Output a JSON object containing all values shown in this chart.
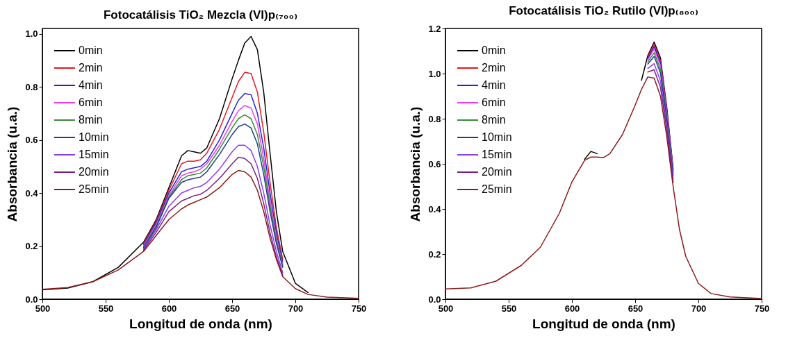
{
  "chart_data": [
    {
      "type": "line",
      "title": "Fotocatálisis TiO₂ Mezcla (VI)p₍₇₀₀₎",
      "xlabel": "Longitud de onda (nm)",
      "ylabel": "Absorbancia (u.a.)",
      "xlim": [
        500,
        750
      ],
      "xticks": [
        500,
        550,
        600,
        650,
        700,
        750
      ],
      "ylim": [
        0,
        1.02
      ],
      "yticks": [
        {
          "value": 0,
          "label": "0.0"
        },
        {
          "value": 0.2,
          "label": "0.2"
        },
        {
          "value": 0.4,
          "label": "0.4"
        },
        {
          "value": 0.6,
          "label": "0.6"
        },
        {
          "value": 0.8,
          "label": "0.8"
        },
        {
          "value": 1,
          "label": "1.0"
        }
      ],
      "grid": false,
      "legend": "top left",
      "x": [
        500,
        520,
        540,
        560,
        580,
        590,
        600,
        610,
        615,
        620,
        625,
        630,
        640,
        650,
        655,
        660,
        665,
        670,
        675,
        680,
        685,
        690,
        700,
        710,
        725,
        750
      ],
      "series": [
        {
          "name": "0min",
          "color": "#000000",
          "values": [
            0.035,
            0.042,
            0.066,
            0.12,
            0.215,
            0.3,
            0.42,
            0.54,
            0.56,
            0.555,
            0.55,
            0.57,
            0.68,
            0.83,
            0.9,
            0.965,
            0.99,
            0.94,
            0.78,
            0.55,
            0.33,
            0.18,
            0.06,
            0.025,
            null,
            null
          ]
        },
        {
          "name": "2min",
          "color": "#e8191e",
          "values": [
            null,
            null,
            null,
            null,
            0.21,
            0.294,
            0.41,
            0.51,
            0.52,
            0.52,
            0.525,
            0.55,
            0.64,
            0.76,
            0.82,
            0.855,
            0.85,
            0.78,
            0.63,
            0.44,
            0.27,
            0.15,
            null,
            null,
            null,
            null
          ]
        },
        {
          "name": "4min",
          "color": "#2424d6",
          "values": [
            null,
            null,
            null,
            null,
            0.206,
            0.288,
            0.4,
            0.48,
            0.49,
            0.495,
            0.5,
            0.52,
            0.6,
            0.7,
            0.75,
            0.775,
            0.77,
            0.7,
            0.57,
            0.4,
            0.25,
            0.14,
            null,
            null,
            null,
            null
          ]
        },
        {
          "name": "6min",
          "color": "#ee3cee",
          "values": [
            null,
            null,
            null,
            null,
            0.202,
            0.282,
            0.39,
            0.465,
            0.475,
            0.48,
            0.49,
            0.51,
            0.58,
            0.67,
            0.71,
            0.73,
            0.72,
            0.66,
            0.53,
            0.37,
            0.23,
            0.13,
            null,
            null,
            null,
            null
          ]
        },
        {
          "name": "8min",
          "color": "#3a8a3a",
          "values": [
            null,
            null,
            null,
            null,
            0.198,
            0.276,
            0.385,
            0.45,
            0.465,
            0.47,
            0.475,
            0.495,
            0.565,
            0.645,
            0.68,
            0.695,
            0.68,
            0.62,
            0.5,
            0.35,
            0.22,
            0.125,
            null,
            null,
            null,
            null
          ]
        },
        {
          "name": "10min",
          "color": "#1e3c8c",
          "values": [
            null,
            null,
            null,
            null,
            0.194,
            0.27,
            0.38,
            0.44,
            0.45,
            0.455,
            0.46,
            0.48,
            0.545,
            0.62,
            0.65,
            0.66,
            0.645,
            0.585,
            0.47,
            0.33,
            0.21,
            0.12,
            null,
            null,
            null,
            null
          ]
        },
        {
          "name": "15min",
          "color": "#8a3cf0",
          "values": [
            null,
            null,
            null,
            null,
            0.19,
            0.262,
            0.35,
            0.4,
            0.41,
            0.42,
            0.425,
            0.44,
            0.49,
            0.555,
            0.58,
            0.58,
            0.56,
            0.5,
            0.4,
            0.28,
            0.18,
            0.1,
            null,
            null,
            null,
            null
          ]
        },
        {
          "name": "20min",
          "color": "#7a1e8a",
          "values": [
            null,
            null,
            null,
            null,
            0.185,
            0.252,
            0.33,
            0.37,
            0.38,
            0.39,
            0.395,
            0.41,
            0.455,
            0.51,
            0.535,
            0.53,
            0.51,
            0.455,
            0.36,
            0.25,
            0.16,
            0.09,
            null,
            null,
            null,
            null
          ]
        },
        {
          "name": "25min",
          "color": "#8b1a1a",
          "values": [
            0.037,
            0.044,
            0.066,
            0.11,
            0.18,
            0.24,
            0.3,
            0.34,
            0.355,
            0.365,
            0.375,
            0.385,
            0.42,
            0.47,
            0.485,
            0.48,
            0.46,
            0.41,
            0.33,
            0.23,
            0.15,
            0.085,
            0.04,
            0.018,
            0.008,
            0.003
          ]
        }
      ]
    },
    {
      "type": "line",
      "title": "Fotocatálisis TiO₂ Rutilo (VI)p₍₈₀₀₎",
      "xlabel": "Longitud de onda (nm)",
      "ylabel": "Absorbancia (u.a.)",
      "xlim": [
        500,
        750
      ],
      "xticks": [
        500,
        550,
        600,
        650,
        700,
        750
      ],
      "ylim": [
        0,
        1.2
      ],
      "yticks": [
        {
          "value": 0,
          "label": "0.0"
        },
        {
          "value": 0.2,
          "label": "0.2"
        },
        {
          "value": 0.4,
          "label": "0.4"
        },
        {
          "value": 0.6,
          "label": "0.6"
        },
        {
          "value": 0.8,
          "label": "0.8"
        },
        {
          "value": 1,
          "label": "1.0"
        },
        {
          "value": 1.2,
          "label": "1.2"
        }
      ],
      "grid": false,
      "legend": "top left",
      "x": [
        500,
        520,
        540,
        560,
        575,
        590,
        600,
        610,
        615,
        620,
        625,
        630,
        640,
        650,
        655,
        660,
        665,
        670,
        675,
        680,
        685,
        690,
        700,
        710,
        725,
        750
      ],
      "series": [
        {
          "name": "0min",
          "color": "#000000",
          "values": [
            null,
            null,
            null,
            null,
            null,
            null,
            null,
            0.62,
            0.655,
            0.645,
            null,
            null,
            null,
            null,
            0.97,
            1.08,
            1.14,
            1.07,
            0.85,
            0.58,
            null,
            null,
            null,
            null,
            null,
            null
          ]
        },
        {
          "name": "2min",
          "color": "#e8191e",
          "values": [
            null,
            null,
            null,
            null,
            null,
            null,
            null,
            null,
            null,
            null,
            null,
            null,
            null,
            null,
            null,
            1.073,
            1.129,
            1.058,
            0.841,
            0.574,
            null,
            null,
            null,
            null,
            null,
            null
          ]
        },
        {
          "name": "4min",
          "color": "#2424d6",
          "values": [
            null,
            null,
            null,
            null,
            null,
            null,
            null,
            null,
            null,
            null,
            null,
            null,
            null,
            null,
            null,
            1.068,
            1.119,
            1.048,
            0.833,
            0.57,
            null,
            null,
            null,
            null,
            null,
            null
          ]
        },
        {
          "name": "6min",
          "color": "#ee3cee",
          "values": [
            null,
            null,
            null,
            null,
            null,
            null,
            null,
            null,
            null,
            null,
            null,
            null,
            null,
            null,
            null,
            1.061,
            1.108,
            1.036,
            0.824,
            0.564,
            null,
            null,
            null,
            null,
            null,
            null
          ]
        },
        {
          "name": "8min",
          "color": "#3a8a3a",
          "values": [
            null,
            null,
            null,
            null,
            null,
            null,
            null,
            null,
            null,
            null,
            null,
            null,
            null,
            null,
            null,
            1.052,
            1.092,
            1.019,
            0.811,
            0.556,
            null,
            null,
            null,
            null,
            null,
            null
          ]
        },
        {
          "name": "10min",
          "color": "#1e3c8c",
          "values": [
            null,
            null,
            null,
            null,
            null,
            null,
            null,
            null,
            null,
            null,
            null,
            null,
            null,
            null,
            null,
            1.042,
            1.076,
            1.002,
            0.798,
            0.548,
            null,
            null,
            null,
            null,
            null,
            null
          ]
        },
        {
          "name": "15min",
          "color": "#8a3cf0",
          "values": [
            null,
            null,
            null,
            null,
            null,
            null,
            null,
            null,
            null,
            null,
            null,
            null,
            null,
            null,
            null,
            1.023,
            1.044,
            0.968,
            0.772,
            0.532,
            null,
            null,
            null,
            null,
            null,
            null
          ]
        },
        {
          "name": "20min",
          "color": "#7a1e8a",
          "values": [
            null,
            null,
            null,
            null,
            null,
            null,
            null,
            null,
            null,
            null,
            null,
            null,
            null,
            null,
            null,
            1.007,
            1.017,
            0.939,
            0.75,
            0.518,
            null,
            null,
            null,
            null,
            null,
            null
          ]
        },
        {
          "name": "25min",
          "color": "#8b1a1a",
          "values": [
            0.045,
            0.05,
            0.08,
            0.15,
            0.23,
            0.38,
            0.52,
            0.615,
            0.63,
            0.63,
            0.628,
            0.645,
            0.73,
            0.86,
            0.93,
            0.985,
            0.98,
            0.9,
            0.72,
            0.5,
            0.31,
            0.19,
            0.07,
            0.025,
            0.01,
            0.003
          ]
        }
      ]
    }
  ]
}
